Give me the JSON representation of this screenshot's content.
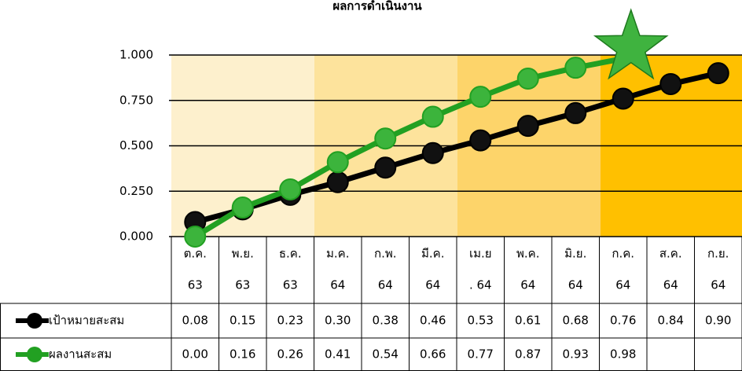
{
  "chart_data": {
    "type": "line",
    "title": "ผลการดำเนินงาน",
    "categories": [
      [
        "ต.ค.",
        "63"
      ],
      [
        "พ.ย.",
        "63"
      ],
      [
        "ธ.ค.",
        "63"
      ],
      [
        "ม.ค.",
        "64"
      ],
      [
        "ก.พ.",
        "64"
      ],
      [
        "มี.ค.",
        "64"
      ],
      [
        "เม.ย",
        ". 64"
      ],
      [
        "พ.ค.",
        "64"
      ],
      [
        "มิ.ย.",
        "64"
      ],
      [
        "ก.ค.",
        "64"
      ],
      [
        "ส.ค.",
        "64"
      ],
      [
        "ก.ย.",
        "64"
      ]
    ],
    "series": [
      {
        "name": "เป้าหมายสะสม",
        "color": "#000000",
        "values": [
          0.08,
          0.15,
          0.23,
          0.3,
          0.38,
          0.46,
          0.53,
          0.61,
          0.68,
          0.76,
          0.84,
          0.9
        ],
        "value_labels": [
          "0.08",
          "0.15",
          "0.23",
          "0.30",
          "0.38",
          "0.46",
          "0.53",
          "0.61",
          "0.68",
          "0.76",
          "0.84",
          "0.90"
        ]
      },
      {
        "name": "ผลงานสะสม",
        "color": "#22a022",
        "values": [
          0,
          0.16,
          0.26,
          0.41,
          0.54,
          0.66,
          0.77,
          0.87,
          0.93,
          0.98,
          null,
          null
        ],
        "value_labels": [
          "0.00",
          "0.16",
          "0.26",
          "0.41",
          "0.54",
          "0.66",
          "0.77",
          "0.87",
          "0.93",
          "0.98",
          null,
          null
        ]
      }
    ],
    "ylim": [
      0,
      1
    ],
    "yticks": [
      {
        "value": 0,
        "label": "0.000"
      },
      {
        "value": 0.25,
        "label": "0.250"
      },
      {
        "value": 0.5,
        "label": "0.500"
      },
      {
        "value": 0.75,
        "label": "0.750"
      },
      {
        "value": 1,
        "label": "1.000"
      }
    ],
    "grid": true
  }
}
